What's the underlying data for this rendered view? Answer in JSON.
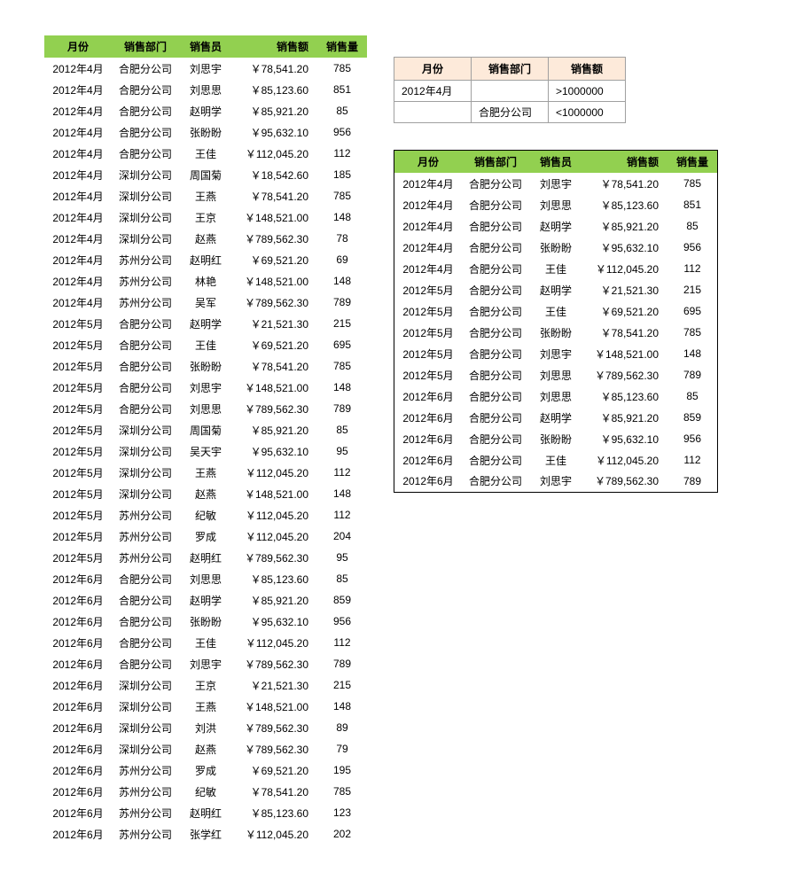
{
  "main_table": {
    "columns": [
      "月份",
      "销售部门",
      "销售员",
      "销售额",
      "销售量"
    ],
    "rows": [
      [
        "2012年4月",
        "合肥分公司",
        "刘思宇",
        "￥78,541.20",
        "785"
      ],
      [
        "2012年4月",
        "合肥分公司",
        "刘思思",
        "￥85,123.60",
        "851"
      ],
      [
        "2012年4月",
        "合肥分公司",
        "赵明学",
        "￥85,921.20",
        "85"
      ],
      [
        "2012年4月",
        "合肥分公司",
        "张盼盼",
        "￥95,632.10",
        "956"
      ],
      [
        "2012年4月",
        "合肥分公司",
        "王佳",
        "￥112,045.20",
        "112"
      ],
      [
        "2012年4月",
        "深圳分公司",
        "周国菊",
        "￥18,542.60",
        "185"
      ],
      [
        "2012年4月",
        "深圳分公司",
        "王燕",
        "￥78,541.20",
        "785"
      ],
      [
        "2012年4月",
        "深圳分公司",
        "王京",
        "￥148,521.00",
        "148"
      ],
      [
        "2012年4月",
        "深圳分公司",
        "赵燕",
        "￥789,562.30",
        "78"
      ],
      [
        "2012年4月",
        "苏州分公司",
        "赵明红",
        "￥69,521.20",
        "69"
      ],
      [
        "2012年4月",
        "苏州分公司",
        "林艳",
        "￥148,521.00",
        "148"
      ],
      [
        "2012年4月",
        "苏州分公司",
        "吴军",
        "￥789,562.30",
        "789"
      ],
      [
        "2012年5月",
        "合肥分公司",
        "赵明学",
        "￥21,521.30",
        "215"
      ],
      [
        "2012年5月",
        "合肥分公司",
        "王佳",
        "￥69,521.20",
        "695"
      ],
      [
        "2012年5月",
        "合肥分公司",
        "张盼盼",
        "￥78,541.20",
        "785"
      ],
      [
        "2012年5月",
        "合肥分公司",
        "刘思宇",
        "￥148,521.00",
        "148"
      ],
      [
        "2012年5月",
        "合肥分公司",
        "刘思思",
        "￥789,562.30",
        "789"
      ],
      [
        "2012年5月",
        "深圳分公司",
        "周国菊",
        "￥85,921.20",
        "85"
      ],
      [
        "2012年5月",
        "深圳分公司",
        "吴天宇",
        "￥95,632.10",
        "95"
      ],
      [
        "2012年5月",
        "深圳分公司",
        "王燕",
        "￥112,045.20",
        "112"
      ],
      [
        "2012年5月",
        "深圳分公司",
        "赵燕",
        "￥148,521.00",
        "148"
      ],
      [
        "2012年5月",
        "苏州分公司",
        "纪敏",
        "￥112,045.20",
        "112"
      ],
      [
        "2012年5月",
        "苏州分公司",
        "罗成",
        "￥112,045.20",
        "204"
      ],
      [
        "2012年5月",
        "苏州分公司",
        "赵明红",
        "￥789,562.30",
        "95"
      ],
      [
        "2012年6月",
        "合肥分公司",
        "刘思思",
        "￥85,123.60",
        "85"
      ],
      [
        "2012年6月",
        "合肥分公司",
        "赵明学",
        "￥85,921.20",
        "859"
      ],
      [
        "2012年6月",
        "合肥分公司",
        "张盼盼",
        "￥95,632.10",
        "956"
      ],
      [
        "2012年6月",
        "合肥分公司",
        "王佳",
        "￥112,045.20",
        "112"
      ],
      [
        "2012年6月",
        "合肥分公司",
        "刘思宇",
        "￥789,562.30",
        "789"
      ],
      [
        "2012年6月",
        "深圳分公司",
        "王京",
        "￥21,521.30",
        "215"
      ],
      [
        "2012年6月",
        "深圳分公司",
        "王燕",
        "￥148,521.00",
        "148"
      ],
      [
        "2012年6月",
        "深圳分公司",
        "刘洪",
        "￥789,562.30",
        "89"
      ],
      [
        "2012年6月",
        "深圳分公司",
        "赵燕",
        "￥789,562.30",
        "79"
      ],
      [
        "2012年6月",
        "苏州分公司",
        "罗成",
        "￥69,521.20",
        "195"
      ],
      [
        "2012年6月",
        "苏州分公司",
        "纪敏",
        "￥78,541.20",
        "785"
      ],
      [
        "2012年6月",
        "苏州分公司",
        "赵明红",
        "￥85,123.60",
        "123"
      ],
      [
        "2012年6月",
        "苏州分公司",
        "张学红",
        "￥112,045.20",
        "202"
      ]
    ],
    "header_bg": "#92d050"
  },
  "criteria_table": {
    "columns": [
      "月份",
      "销售部门",
      "销售额"
    ],
    "rows": [
      [
        "2012年4月",
        "",
        ">1000000"
      ],
      [
        "",
        "合肥分公司",
        "<1000000"
      ]
    ],
    "header_bg": "#fdeada",
    "border_color": "#a0a0a0"
  },
  "result_table": {
    "columns": [
      "月份",
      "销售部门",
      "销售员",
      "销售额",
      "销售量"
    ],
    "rows": [
      [
        "2012年4月",
        "合肥分公司",
        "刘思宇",
        "￥78,541.20",
        "785"
      ],
      [
        "2012年4月",
        "合肥分公司",
        "刘思思",
        "￥85,123.60",
        "851"
      ],
      [
        "2012年4月",
        "合肥分公司",
        "赵明学",
        "￥85,921.20",
        "85"
      ],
      [
        "2012年4月",
        "合肥分公司",
        "张盼盼",
        "￥95,632.10",
        "956"
      ],
      [
        "2012年4月",
        "合肥分公司",
        "王佳",
        "￥112,045.20",
        "112"
      ],
      [
        "2012年5月",
        "合肥分公司",
        "赵明学",
        "￥21,521.30",
        "215"
      ],
      [
        "2012年5月",
        "合肥分公司",
        "王佳",
        "￥69,521.20",
        "695"
      ],
      [
        "2012年5月",
        "合肥分公司",
        "张盼盼",
        "￥78,541.20",
        "785"
      ],
      [
        "2012年5月",
        "合肥分公司",
        "刘思宇",
        "￥148,521.00",
        "148"
      ],
      [
        "2012年5月",
        "合肥分公司",
        "刘思思",
        "￥789,562.30",
        "789"
      ],
      [
        "2012年6月",
        "合肥分公司",
        "刘思思",
        "￥85,123.60",
        "85"
      ],
      [
        "2012年6月",
        "合肥分公司",
        "赵明学",
        "￥85,921.20",
        "859"
      ],
      [
        "2012年6月",
        "合肥分公司",
        "张盼盼",
        "￥95,632.10",
        "956"
      ],
      [
        "2012年6月",
        "合肥分公司",
        "王佳",
        "￥112,045.20",
        "112"
      ],
      [
        "2012年6月",
        "合肥分公司",
        "刘思宇",
        "￥789,562.30",
        "789"
      ]
    ],
    "header_bg": "#92d050",
    "border_color": "#000000"
  }
}
